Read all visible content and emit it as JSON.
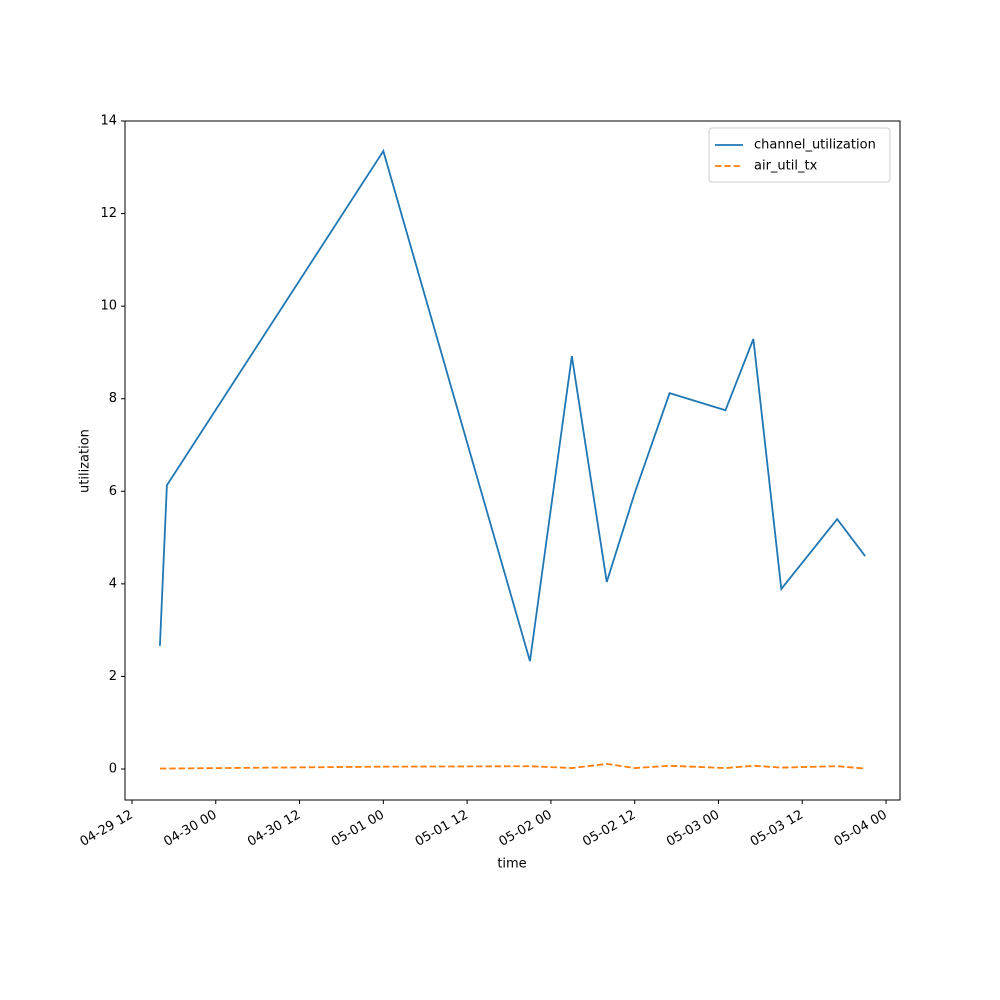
{
  "chart_data": {
    "type": "line",
    "x_label": "time",
    "y_label": "utilization",
    "x": [
      "04-29 16",
      "04-29 17",
      "05-01 00",
      "05-01 21",
      "05-02 03",
      "05-02 08",
      "05-02 12",
      "05-02 17",
      "05-03 01",
      "05-03 05",
      "05-03 09",
      "05-03 17",
      "05-03 21"
    ],
    "series": [
      {
        "name": "channel_utilization",
        "color": "#1f77b4",
        "dash": "solid",
        "values": [
          2.66,
          6.13,
          13.35,
          2.33,
          8.92,
          4.04,
          5.96,
          8.12,
          7.75,
          9.29,
          3.89,
          5.4,
          4.6
        ]
      },
      {
        "name": "air_util_tx",
        "color": "#ff7f0e",
        "dash": "dashed",
        "values": [
          0.01,
          0.01,
          0.05,
          0.06,
          0.02,
          0.11,
          0.02,
          0.07,
          0.02,
          0.07,
          0.03,
          0.06,
          0.01
        ]
      }
    ],
    "xlim": [
      "04-29 11",
      "05-04 02"
    ],
    "xticks": [
      "04-29 12",
      "04-30 00",
      "04-30 12",
      "05-01 00",
      "05-01 12",
      "05-02 00",
      "05-02 12",
      "05-03 00",
      "05-03 12",
      "05-04 00"
    ],
    "ylim": [
      -0.67,
      14
    ],
    "yticks": [
      0,
      2,
      4,
      6,
      8,
      10,
      12,
      14
    ],
    "legend": "upper right",
    "grid": false
  }
}
